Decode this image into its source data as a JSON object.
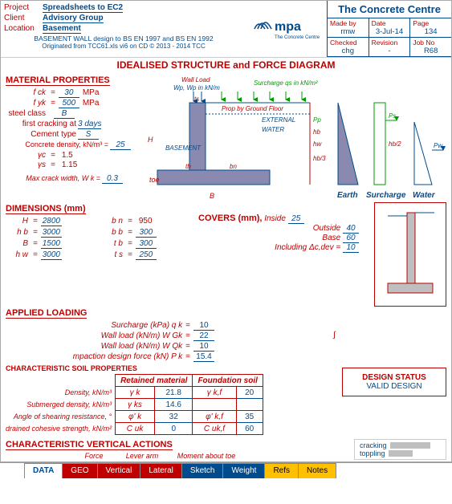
{
  "header": {
    "project_label": "Project",
    "project": "Spreadsheets to EC2",
    "client_label": "Client",
    "client": "Advisory Group",
    "location_label": "Location",
    "location": "Basement",
    "subtitle1": "BASEMENT WALL design to BS EN 1997 and BS EN 1992",
    "subtitle2": "Originated from TCC61.xls   vi6 on CD    © 2013 - 2014 TCC",
    "company": "The Concrete Centre",
    "made_by_label": "Made by",
    "made_by": "rmw",
    "date_label": "Date",
    "date": "3-Jul-14",
    "page_label": "Page",
    "page": "134",
    "checked_label": "Checked",
    "checked": "chg",
    "revision_label": "Revision",
    "revision": "-",
    "jobno_label": "Job No",
    "jobno": "R68"
  },
  "materials": {
    "title": "MATERIAL PROPERTIES",
    "fck_label": "f ck",
    "fck": "30",
    "fck_unit": "MPa",
    "fyk_label": "f yk",
    "fyk": "500",
    "fyk_unit": "MPa",
    "steel_label": "steel class",
    "steel": "B",
    "crack_label": "first cracking at",
    "crack": "3 days",
    "cement_label": "Cement type",
    "cement": "S",
    "density_label": "Concrete density, kN/m³ =",
    "density": "25",
    "gc_label": "γc",
    "gc": "1.5",
    "gs_label": "γs",
    "gs": "1.15",
    "maxcrack_label": "Max crack width, W k  =",
    "maxcrack": "0.3"
  },
  "dimensions": {
    "title": "DIMENSIONS (mm)",
    "H_label": "H",
    "H": "2800",
    "hb_label": "h b",
    "hb": "3000",
    "B_label": "B",
    "B": "1500",
    "hw_label": "h w",
    "hw": "3000",
    "bn_label": "b n",
    "bn": "950",
    "bb_label": "b b",
    "bb": "300",
    "tb_label": "t b",
    "tb": "300",
    "ts_label": "t s",
    "ts": "250"
  },
  "covers": {
    "title": "COVERS (mm),",
    "inside_label": "Inside",
    "inside": "25",
    "outside_label": "Outside",
    "outside": "40",
    "base_label": "Base",
    "base": "60",
    "incl_label": "Including Δc,dev",
    "incl": "10"
  },
  "loading": {
    "title": "APPLIED LOADING",
    "surcharge_label": "Surcharge (kPa) q k",
    "surcharge": "10",
    "wgk_label": "Wall load (kN/m) W Gk",
    "wgk": "22",
    "wqk_label": "Wall load (kN/m) W Qk",
    "wqk": "10",
    "comp_label": "mpaction design force (kN) P k",
    "comp": "15.4"
  },
  "soil": {
    "title": "CHARACTERISTIC SOIL PROPERTIES",
    "col1": "Retained material",
    "col2": "Foundation soil",
    "rows": [
      {
        "label": "Density, kN/m³",
        "sym1": "γ k",
        "val1": "21.8",
        "sym2": "γ k,f",
        "val2": "20"
      },
      {
        "label": "Submerged density, kN/m³",
        "sym1": "γ ks",
        "val1": "14.6",
        "sym2": "",
        "val2": ""
      },
      {
        "label": "Angle of shearing resistance, °",
        "sym1": "φ' k",
        "val1": "32",
        "sym2": "φ' k,f",
        "val2": "35"
      },
      {
        "label": "drained cohesive strength, kN/m²",
        "sym1": "C uk",
        "val1": "0",
        "sym2": "C uk,f",
        "val2": "60"
      }
    ]
  },
  "diagram": {
    "title": "IDEALISED STRUCTURE and FORCE DIAGRAM",
    "wall_load": "Wall Load",
    "wp": "Wp, Wp in kN/m",
    "surcharge": "Surcharge qs in kN/m²",
    "prop": "Prop by Ground Floor",
    "external": "EXTERNAL",
    "water": "WATER",
    "basement": "BASEMENT",
    "toe": "toe",
    "H": "H",
    "B": "B",
    "ts": "ts",
    "tb": "tb",
    "bn": "bn",
    "hb": "hb",
    "hw": "hw",
    "ps": "Ps",
    "pw": "Pw",
    "pp": "Pp",
    "hb2": "hb/2",
    "hb3": "hb/3",
    "earth": "Earth",
    "surch": "Surcharge",
    "wat": "Water"
  },
  "design_status": {
    "title": "DESIGN STATUS",
    "status": "VALID DESIGN"
  },
  "char_vert": {
    "title": "CHARACTERISTIC VERTICAL ACTIONS",
    "c1": "Force",
    "c2": "Lever arm",
    "c3": "Moment about toe"
  },
  "cracking": {
    "l1": "cracking",
    "l2": "toppling"
  },
  "tabs": [
    {
      "label": "DATA",
      "bg": "#fff",
      "fg": "#004b8d",
      "bold": true
    },
    {
      "label": "GEO",
      "bg": "#c00000",
      "fg": "#fff"
    },
    {
      "label": "Vertical",
      "bg": "#c00000",
      "fg": "#fff"
    },
    {
      "label": "Lateral",
      "bg": "#c00000",
      "fg": "#fff"
    },
    {
      "label": "Sketch",
      "bg": "#004b8d",
      "fg": "#fff"
    },
    {
      "label": "Weight",
      "bg": "#004b8d",
      "fg": "#fff"
    },
    {
      "label": "Refs",
      "bg": "#ffc000",
      "fg": "#000"
    },
    {
      "label": "Notes",
      "bg": "#ffc000",
      "fg": "#000"
    }
  ],
  "thumb": {
    "wall_fill": "#bfbfbf",
    "base_fill": "#bfbfbf"
  }
}
